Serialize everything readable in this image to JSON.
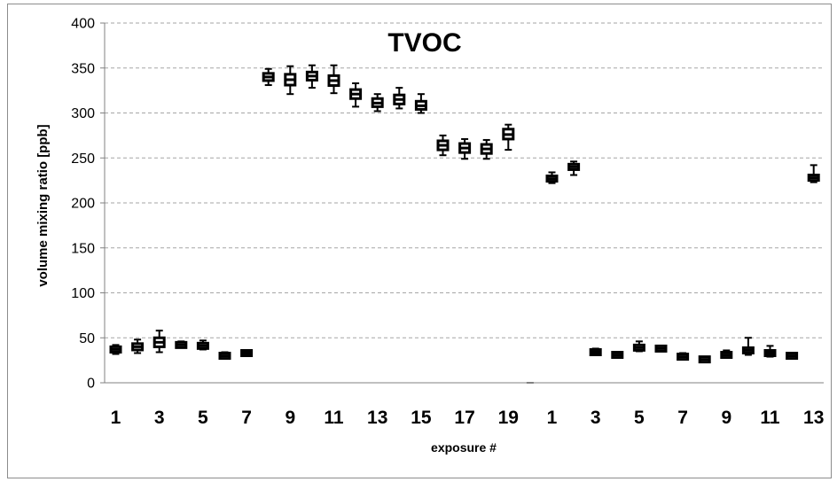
{
  "chart_data": {
    "type": "scatter",
    "title": "TVOC",
    "xlabel": "exposure #",
    "ylabel": "volume mixing ratio [ppb]",
    "ylim": [
      0,
      400
    ],
    "yticks": [
      0,
      50,
      100,
      150,
      200,
      250,
      300,
      350,
      400
    ],
    "grid": "horizontal dashed",
    "marker": "box plot with whiskers",
    "x_tick_labels": [
      "1",
      "3",
      "5",
      "7",
      "9",
      "11",
      "13",
      "15",
      "17",
      "19",
      "1",
      "3",
      "5",
      "7",
      "9",
      "11",
      "13"
    ],
    "categories": [
      "1",
      "2",
      "3",
      "4",
      "5",
      "6",
      "7",
      "8",
      "9",
      "10",
      "11",
      "12",
      "13",
      "14",
      "15",
      "16",
      "17",
      "18",
      "19",
      "20",
      "1",
      "2",
      "3",
      "4",
      "5",
      "6",
      "7",
      "8",
      "9",
      "10",
      "11",
      "12",
      "13"
    ],
    "series": [
      {
        "median": [
          37,
          40,
          45,
          42,
          41,
          30,
          33,
          340,
          337,
          341,
          336,
          321,
          311,
          315,
          308,
          264,
          261,
          260,
          276,
          0,
          227,
          240,
          34,
          31,
          39,
          38,
          29,
          26,
          31,
          36,
          33,
          30,
          228
        ],
        "q1": [
          34,
          36,
          40,
          40,
          39,
          28,
          32,
          336,
          331,
          336,
          330,
          316,
          307,
          310,
          304,
          259,
          256,
          255,
          271,
          0,
          225,
          237,
          32,
          29,
          37,
          36,
          27,
          25,
          30,
          34,
          31,
          29,
          225
        ],
        "q3": [
          40,
          43,
          50,
          44,
          44,
          32,
          34,
          344,
          343,
          345,
          341,
          326,
          316,
          320,
          313,
          269,
          266,
          265,
          282,
          0,
          230,
          243,
          36,
          33,
          42,
          40,
          31,
          27,
          33,
          38,
          35,
          31,
          231
        ],
        "min": [
          32,
          33,
          34,
          39,
          37,
          27,
          31,
          331,
          321,
          328,
          322,
          307,
          302,
          305,
          300,
          253,
          249,
          249,
          259,
          0,
          222,
          231,
          31,
          28,
          35,
          35,
          26,
          24,
          29,
          31,
          29,
          28,
          223
        ],
        "max": [
          42,
          48,
          58,
          46,
          47,
          34,
          35,
          349,
          352,
          353,
          353,
          333,
          321,
          328,
          321,
          275,
          271,
          270,
          287,
          0,
          234,
          246,
          38,
          34,
          46,
          41,
          33,
          28,
          36,
          50,
          41,
          32,
          242
        ]
      }
    ]
  }
}
